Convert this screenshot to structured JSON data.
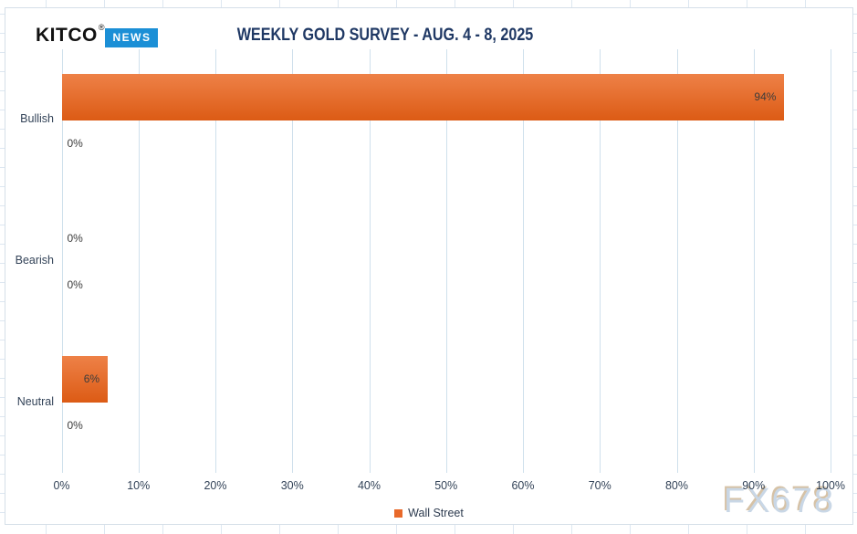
{
  "logo": {
    "wordmark": "KITCO",
    "registered": "®",
    "badge": "NEWS"
  },
  "title": "WEEKLY GOLD SURVEY - AUG. 4 - 8, 2025",
  "watermark": "FX678",
  "legend": {
    "items": [
      {
        "label": "Wall Street",
        "color": "#E8692A"
      }
    ],
    "position": "bottom"
  },
  "chart_data": {
    "type": "bar",
    "orientation": "horizontal",
    "title": "WEEKLY GOLD SURVEY - AUG. 4 - 8, 2025",
    "categories": [
      "Bullish",
      "Bearish",
      "Neutral"
    ],
    "series": [
      {
        "name": "Wall Street",
        "values": [
          94,
          0,
          6
        ]
      },
      {
        "name": "",
        "values": [
          0,
          0,
          0
        ]
      }
    ],
    "data_labels": [
      [
        "94%",
        "0%"
      ],
      [
        "0%",
        "0%"
      ],
      [
        "6%",
        "0%"
      ]
    ],
    "xlim": [
      0,
      100
    ],
    "x_ticks": [
      "0%",
      "10%",
      "20%",
      "30%",
      "40%",
      "50%",
      "60%",
      "70%",
      "80%",
      "90%",
      "100%"
    ],
    "xlabel": "",
    "ylabel": "",
    "grid": "vertical",
    "legend_position": "bottom"
  },
  "colors": {
    "title": "#1F3864",
    "axis_text": "#334358",
    "data_label": "#3C3C3C",
    "gridline": "#CFE0EC",
    "bar_top": "#EE8147",
    "bar_bottom": "#DC5B15",
    "news_badge": "#1B8FD6",
    "watermark_fill": "#C9D7E6",
    "watermark_shadow": "#D6C2A6"
  }
}
